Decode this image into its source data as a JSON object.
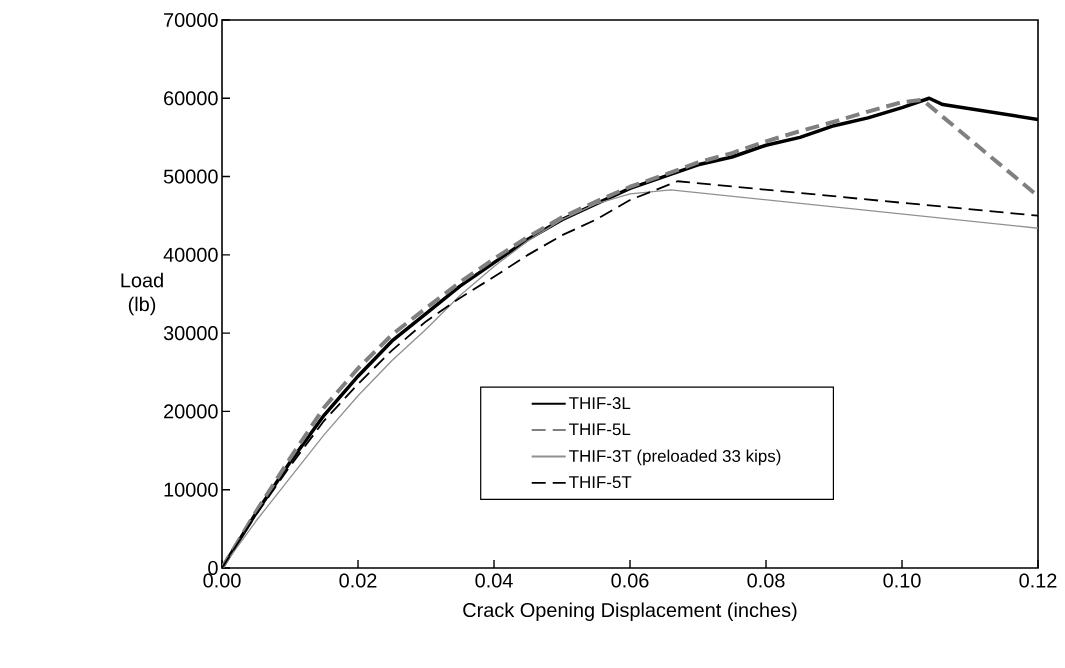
{
  "chart_data": {
    "type": "line",
    "xlabel": "Crack Opening Displacement (inches)",
    "ylabel": "Load (lb)",
    "xlim": [
      0,
      0.12
    ],
    "ylim": [
      0,
      70000
    ],
    "xticks": [
      {
        "value": 0,
        "label": "0.00"
      },
      {
        "value": 0.02,
        "label": "0.02"
      },
      {
        "value": 0.04,
        "label": "0.04"
      },
      {
        "value": 0.06,
        "label": "0.06"
      },
      {
        "value": 0.08,
        "label": "0.08"
      },
      {
        "value": 0.1,
        "label": "0.10"
      },
      {
        "value": 0.12,
        "label": "0.12"
      }
    ],
    "yticks": [
      0,
      10000,
      20000,
      30000,
      40000,
      50000,
      60000,
      70000
    ],
    "grid": false,
    "legend": "bottom right",
    "marker": "none",
    "series": [
      {
        "name": "THIF-3L",
        "color": "#000000",
        "line_style": "solid",
        "x": [
          0,
          0.005,
          0.01,
          0.015,
          0.02,
          0.025,
          0.03,
          0.035,
          0.04,
          0.045,
          0.05,
          0.055,
          0.06,
          0.065,
          0.07,
          0.075,
          0.08,
          0.085,
          0.09,
          0.095,
          0.1,
          0.104,
          0.106,
          0.12
        ],
        "values": [
          0,
          7000,
          13500,
          19500,
          24500,
          29000,
          32500,
          36000,
          39000,
          42000,
          44500,
          46500,
          48500,
          50000,
          51500,
          52500,
          54000,
          55000,
          56500,
          57500,
          58800,
          60000,
          59200,
          57300
        ]
      },
      {
        "name": "THIF-5L",
        "color": "#808080",
        "line_style": "dashed",
        "x": [
          0,
          0.005,
          0.01,
          0.015,
          0.02,
          0.025,
          0.03,
          0.035,
          0.04,
          0.045,
          0.05,
          0.055,
          0.06,
          0.065,
          0.07,
          0.075,
          0.08,
          0.085,
          0.09,
          0.095,
          0.1,
          0.103,
          0.12
        ],
        "values": [
          0,
          7200,
          14000,
          20500,
          25500,
          29800,
          33200,
          36500,
          39500,
          42300,
          44800,
          46800,
          48700,
          50200,
          51800,
          53000,
          54500,
          55800,
          57000,
          58300,
          59500,
          59800,
          47500
        ]
      },
      {
        "name": "THIF-3T (preloaded 33 kips)",
        "color": "#909090",
        "line_style": "solid",
        "x": [
          0,
          0.005,
          0.01,
          0.015,
          0.02,
          0.025,
          0.03,
          0.035,
          0.04,
          0.045,
          0.05,
          0.055,
          0.06,
          0.066,
          0.12
        ],
        "values": [
          0,
          6000,
          11500,
          17000,
          22000,
          26500,
          30500,
          34800,
          38500,
          41800,
          44500,
          46500,
          47800,
          48300,
          43400
        ]
      },
      {
        "name": "THIF-5T",
        "color": "#000000",
        "line_style": "dashed",
        "x": [
          0,
          0.005,
          0.01,
          0.015,
          0.02,
          0.025,
          0.03,
          0.035,
          0.04,
          0.045,
          0.05,
          0.055,
          0.06,
          0.067,
          0.097,
          0.12
        ],
        "values": [
          0,
          6800,
          13000,
          18800,
          23500,
          27800,
          31500,
          34500,
          37200,
          40000,
          42500,
          44500,
          47000,
          49400,
          46900,
          45000
        ]
      }
    ]
  }
}
